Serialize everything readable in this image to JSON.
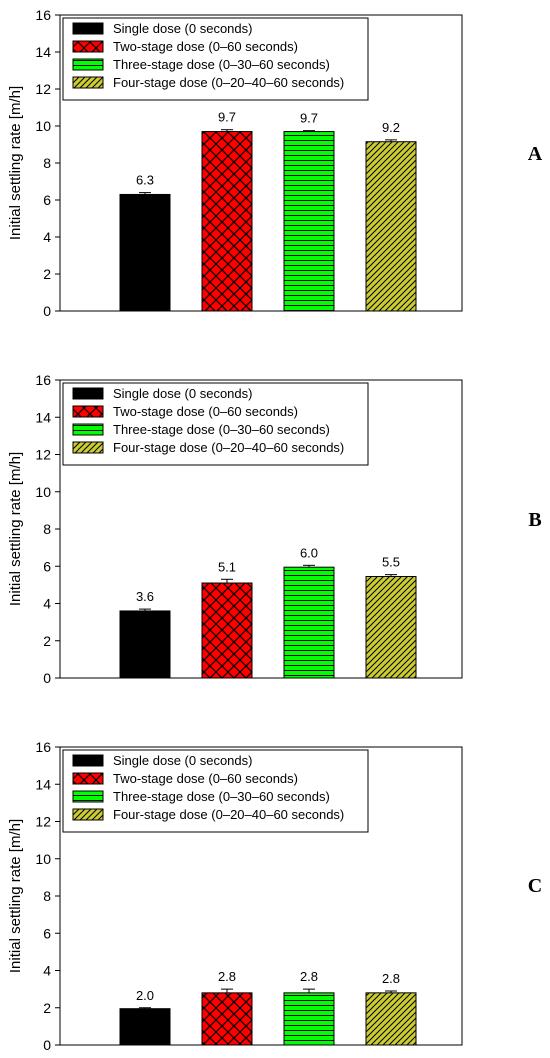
{
  "legend": [
    {
      "label": "Single dose (0 seconds)",
      "color": "#000000",
      "pattern": "solid"
    },
    {
      "label": "Two-stage dose (0–60 seconds)",
      "color": "#ff0000",
      "pattern": "crosshatch"
    },
    {
      "label": "Three-stage dose (0–30–60 seconds)",
      "color": "#00ff00",
      "pattern": "horizontal"
    },
    {
      "label": "Four-stage dose (0–20–40–60 seconds)",
      "color": "#cccc33",
      "pattern": "diagonal"
    }
  ],
  "chart_data": [
    {
      "type": "bar",
      "panel_label": "A",
      "ylabel": "Initial settling rate [m/h]",
      "ylim": [
        0,
        16
      ],
      "yticks": [
        0,
        2,
        4,
        6,
        8,
        10,
        12,
        14,
        16
      ],
      "legend_position": "top-left",
      "series": [
        {
          "name": "Single dose (0 seconds)",
          "value": 6.3,
          "label": "6.3",
          "error": 0.1
        },
        {
          "name": "Two-stage dose (0–60 seconds)",
          "value": 9.7,
          "label": "9.7",
          "error": 0.1
        },
        {
          "name": "Three-stage dose (0–30–60 seconds)",
          "value": 9.7,
          "label": "9.7",
          "error": 0.05
        },
        {
          "name": "Four-stage dose (0–20–40–60 seconds)",
          "value": 9.15,
          "label": "9.2",
          "error": 0.1
        }
      ]
    },
    {
      "type": "bar",
      "panel_label": "B",
      "ylabel": "Initial settling rate [m/h]",
      "ylim": [
        0,
        16
      ],
      "yticks": [
        0,
        2,
        4,
        6,
        8,
        10,
        12,
        14,
        16
      ],
      "legend_position": "top-left",
      "series": [
        {
          "name": "Single dose (0 seconds)",
          "value": 3.6,
          "label": "3.6",
          "error": 0.1
        },
        {
          "name": "Two-stage dose (0–60 seconds)",
          "value": 5.1,
          "label": "5.1",
          "error": 0.2
        },
        {
          "name": "Three-stage dose (0–30–60 seconds)",
          "value": 5.95,
          "label": "6.0",
          "error": 0.1
        },
        {
          "name": "Four-stage dose (0–20–40–60 seconds)",
          "value": 5.45,
          "label": "5.5",
          "error": 0.1
        }
      ]
    },
    {
      "type": "bar",
      "panel_label": "C",
      "ylabel": "Initial settling rate [m/h]",
      "ylim": [
        0,
        16
      ],
      "yticks": [
        0,
        2,
        4,
        6,
        8,
        10,
        12,
        14,
        16
      ],
      "legend_position": "top-left",
      "series": [
        {
          "name": "Single dose (0 seconds)",
          "value": 1.95,
          "label": "2.0",
          "error": 0.05
        },
        {
          "name": "Two-stage dose (0–60 seconds)",
          "value": 2.8,
          "label": "2.8",
          "error": 0.2
        },
        {
          "name": "Three-stage dose (0–30–60 seconds)",
          "value": 2.8,
          "label": "2.8",
          "error": 0.2
        },
        {
          "name": "Four-stage dose (0–20–40–60 seconds)",
          "value": 2.8,
          "label": "2.8",
          "error": 0.1
        }
      ]
    }
  ]
}
